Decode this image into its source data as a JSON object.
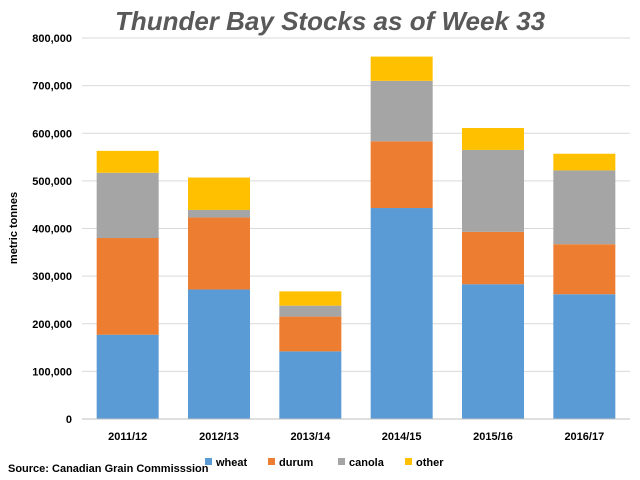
{
  "chart_data": {
    "type": "bar",
    "stacked": true,
    "title": "Thunder Bay Stocks as of Week 33",
    "ylabel": "metric tonnes",
    "xlabel": "",
    "source": "Source: Canadian Grain Commisssion",
    "categories": [
      "2011/12",
      "2012/13",
      "2013/14",
      "2014/15",
      "2015/16",
      "2016/17"
    ],
    "ylim": [
      0,
      800000
    ],
    "yticks": [
      0,
      100000,
      200000,
      300000,
      400000,
      500000,
      600000,
      700000,
      800000
    ],
    "ytick_labels": [
      "0",
      "100,000",
      "200,000",
      "300,000",
      "400,000",
      "500,000",
      "600,000",
      "700,000",
      "800,000"
    ],
    "grid": true,
    "legend_position": "bottom",
    "series": [
      {
        "name": "wheat",
        "color": "#5B9BD5",
        "values": [
          177000,
          272000,
          142000,
          443000,
          283000,
          262000
        ]
      },
      {
        "name": "durum",
        "color": "#ED7D31",
        "values": [
          203000,
          151000,
          73000,
          140000,
          110000,
          105000
        ]
      },
      {
        "name": "canola",
        "color": "#A5A5A5",
        "values": [
          137000,
          16000,
          23000,
          127000,
          172000,
          155000
        ]
      },
      {
        "name": "other",
        "color": "#FFC000",
        "values": [
          46000,
          68000,
          30000,
          51000,
          46000,
          35000
        ]
      }
    ]
  }
}
